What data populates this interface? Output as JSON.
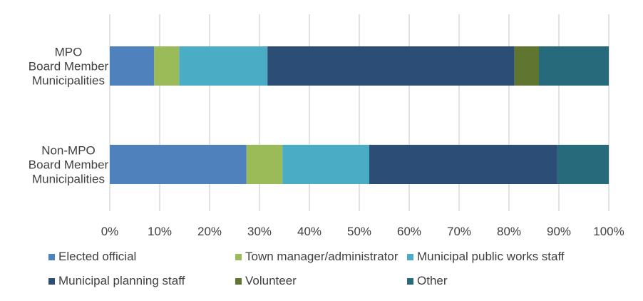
{
  "chart_data": {
    "type": "bar",
    "orientation": "horizontal",
    "stacked": "percent",
    "categories": [
      "MPO\nBoard Member\nMunicipalities",
      "Non-MPO\nBoard Member\nMunicipalities"
    ],
    "series": [
      {
        "name": "Elected official",
        "color": "#4f81bd",
        "values": [
          8.9,
          27.4
        ]
      },
      {
        "name": "Town manager/administrator",
        "color": "#9bbb59",
        "values": [
          5.0,
          7.2
        ]
      },
      {
        "name": "Municipal public works staff",
        "color": "#4bacc6",
        "values": [
          17.7,
          17.4
        ]
      },
      {
        "name": "Municipal planning staff",
        "color": "#2c4d75",
        "values": [
          49.5,
          37.7
        ]
      },
      {
        "name": "Volunteer",
        "color": "#5f7530",
        "values": [
          4.9,
          0
        ]
      },
      {
        "name": "Other",
        "color": "#276a7c",
        "values": [
          14.0,
          10.3
        ]
      }
    ],
    "xticks": [
      "0%",
      "10%",
      "20%",
      "30%",
      "40%",
      "50%",
      "60%",
      "70%",
      "80%",
      "90%",
      "100%"
    ],
    "xlim": [
      0,
      100
    ],
    "grid": true,
    "legend": "bottom"
  }
}
